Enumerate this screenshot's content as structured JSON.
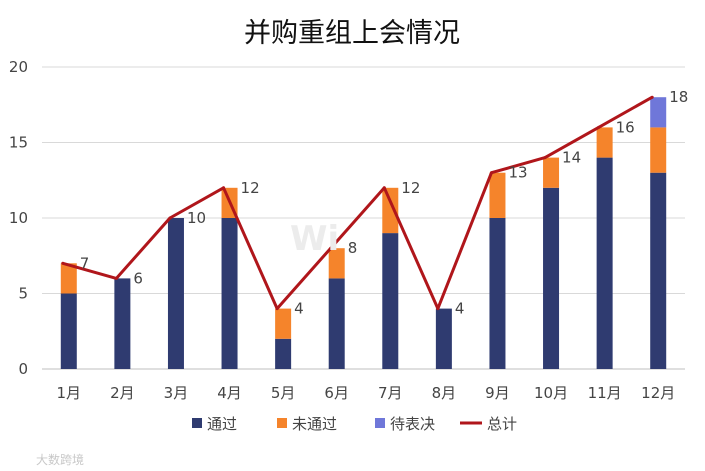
{
  "chart_data": {
    "type": "bar",
    "stacked": true,
    "title": "并购重组上会情况",
    "categories": [
      "1月",
      "2月",
      "3月",
      "4月",
      "5月",
      "6月",
      "7月",
      "8月",
      "9月",
      "10月",
      "11月",
      "12月"
    ],
    "series": [
      {
        "name": "通过",
        "kind": "bar",
        "color": "#2f3b70",
        "values": [
          5,
          6,
          10,
          10,
          2,
          6,
          9,
          4,
          10,
          12,
          14,
          13
        ]
      },
      {
        "name": "未通过",
        "kind": "bar",
        "color": "#f5842b",
        "values": [
          2,
          0,
          0,
          2,
          2,
          2,
          3,
          0,
          3,
          2,
          2,
          3
        ]
      },
      {
        "name": "待表决",
        "kind": "bar",
        "color": "#6f77d9",
        "values": [
          0,
          0,
          0,
          0,
          0,
          0,
          0,
          0,
          0,
          0,
          0,
          2
        ]
      },
      {
        "name": "总计",
        "kind": "line",
        "color": "#b0161b",
        "values": [
          7,
          6,
          10,
          12,
          4,
          8,
          12,
          4,
          13,
          14,
          16,
          18
        ]
      }
    ],
    "data_labels": [
      "7",
      "6",
      "10",
      "12",
      "4",
      "8",
      "12",
      "4",
      "13",
      "14",
      "16",
      "18"
    ],
    "ylim": [
      0,
      20
    ],
    "yticks": [
      0,
      5,
      10,
      15,
      20
    ],
    "ytick_labels": [
      "0",
      "5",
      "10",
      "15",
      "20"
    ],
    "grid": true,
    "legend_position": "bottom"
  },
  "watermark": {
    "center_text": "Wi",
    "corner_text": "大数跨境"
  }
}
